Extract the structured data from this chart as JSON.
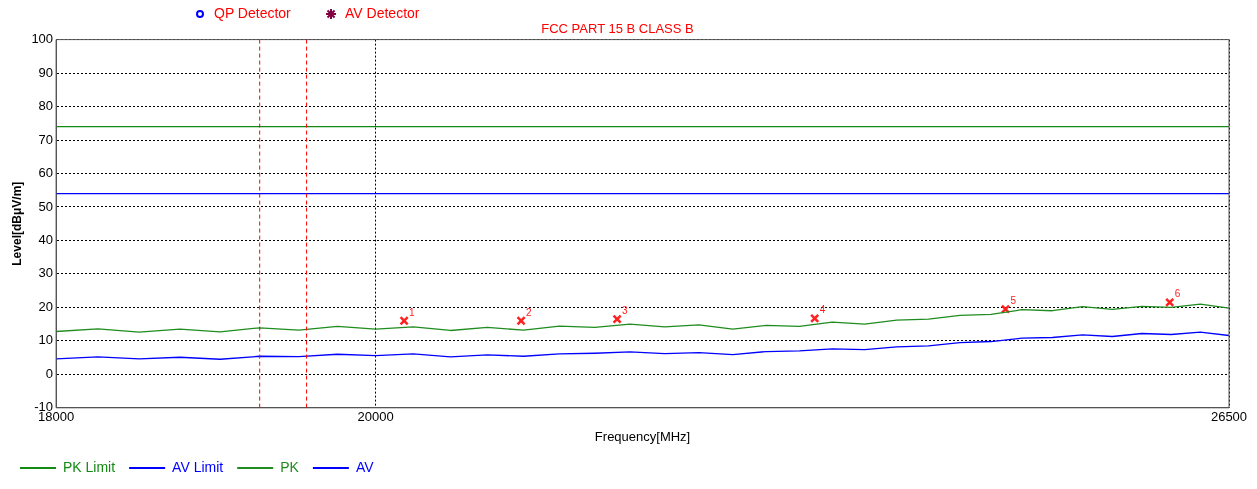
{
  "chart_data": {
    "type": "line",
    "title": "FCC PART 15 B CLASS B",
    "xlabel": "Frequency[MHz]",
    "ylabel": "Level[dBμV/m]",
    "x": [
      18000,
      18250,
      18500,
      18750,
      19000,
      19250,
      19500,
      19750,
      20000,
      20250,
      20500,
      20750,
      21000,
      21250,
      21500,
      21750,
      22000,
      22250,
      22500,
      22750,
      23000,
      23250,
      23500,
      23750,
      24000,
      24250,
      24500,
      24750,
      25000,
      25250,
      25500,
      25750,
      26000,
      26250,
      26500
    ],
    "series": [
      {
        "name": "PK Limit",
        "color": "#138a13",
        "x": [
          18000,
          26500
        ],
        "values": [
          74,
          74
        ]
      },
      {
        "name": "AV Limit",
        "color": "#0000ff",
        "x": [
          18000,
          26500
        ],
        "values": [
          54,
          54
        ]
      },
      {
        "name": "PK",
        "color": "#1f8c1f",
        "values": [
          12.8,
          13.6,
          12.6,
          13.5,
          12.7,
          13.9,
          13.2,
          14.3,
          13.5,
          14.2,
          13.1,
          14.0,
          13.2,
          14.4,
          14.0,
          15.0,
          14.2,
          14.8,
          13.5,
          14.6,
          14.3,
          15.6,
          15.0,
          16.2,
          16.5,
          17.6,
          17.9,
          19.3,
          19.0,
          20.2,
          19.4,
          20.3,
          20.0,
          21.0,
          19.8
        ]
      },
      {
        "name": "AV",
        "color": "#0000ff",
        "values": [
          4.6,
          5.2,
          4.6,
          5.1,
          4.5,
          5.4,
          5.3,
          6.0,
          5.6,
          6.1,
          5.2,
          5.8,
          5.4,
          6.1,
          6.3,
          6.7,
          6.2,
          6.5,
          5.9,
          6.8,
          7.0,
          7.6,
          7.4,
          8.2,
          8.5,
          9.5,
          9.8,
          10.8,
          11.0,
          11.8,
          11.3,
          12.2,
          11.9,
          12.6,
          11.6
        ]
      },
      {
        "color": "#ff2020",
        "type": "scatter",
        "marker": "cross",
        "x": [
          20189,
          20983,
          21658,
          23116,
          24617,
          25987
        ],
        "values": [
          16,
          16,
          16.5,
          16.7,
          19.5,
          21.5
        ]
      },
      {
        "name": "QP Detector",
        "color": "#0000ff",
        "type": "scatter",
        "marker": "circle",
        "values": [
          null,
          null,
          null,
          null,
          null,
          null,
          null,
          null,
          null,
          null,
          null,
          null,
          null,
          null,
          null,
          null,
          null,
          null,
          null,
          null,
          null,
          null,
          null,
          null,
          null,
          null,
          null,
          null,
          null,
          null,
          null,
          null,
          null,
          null,
          null
        ]
      },
      {
        "name": "AV Detector",
        "color": "#800040",
        "type": "scatter",
        "marker": "star",
        "values": [
          null,
          null,
          null,
          null,
          null,
          null,
          null,
          null,
          null,
          null,
          null,
          null,
          null,
          null,
          null,
          null,
          null,
          null,
          null,
          null,
          null,
          null,
          null,
          null,
          null,
          null,
          null,
          null,
          null,
          null,
          null,
          null,
          null,
          null,
          null
        ]
      }
    ],
    "annotations": [
      {
        "text": "1",
        "x": 20189,
        "y": 16
      },
      {
        "text": "2",
        "x": 20983,
        "y": 16
      },
      {
        "text": "3",
        "x": 21658,
        "y": 16.5
      },
      {
        "text": "4",
        "x": 23116,
        "y": 16.7
      },
      {
        "text": "5",
        "x": 24617,
        "y": 19.5
      },
      {
        "text": "6",
        "x": 25987,
        "y": 21.5
      }
    ],
    "ref_lines": [
      {
        "axis": "x",
        "value": 19250,
        "color": "#ff0000",
        "line_style": "dashed"
      },
      {
        "axis": "x",
        "value": 19550,
        "color": "#ff0000",
        "line_style": "dashed"
      }
    ],
    "log": "x",
    "xlim": [
      18000,
      26500
    ],
    "xticks": [
      18000,
      20000,
      26500
    ],
    "ylim": [
      -10,
      100
    ],
    "yticks": [
      -10,
      0,
      10,
      20,
      30,
      40,
      50,
      60,
      70,
      80,
      90,
      100
    ],
    "grid": true,
    "legend": "bottom"
  }
}
